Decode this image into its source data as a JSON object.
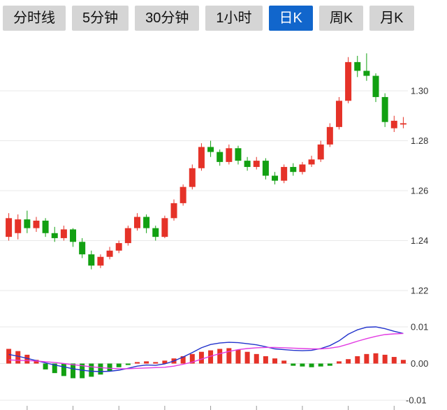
{
  "tabs": [
    {
      "id": "timeline",
      "label": "分时线",
      "active": false
    },
    {
      "id": "5min",
      "label": "5分钟",
      "active": false
    },
    {
      "id": "30min",
      "label": "30分钟",
      "active": false
    },
    {
      "id": "1hour",
      "label": "1小时",
      "active": false
    },
    {
      "id": "daily",
      "label": "日K",
      "active": true
    },
    {
      "id": "weekly",
      "label": "周K",
      "active": false
    },
    {
      "id": "monthly",
      "label": "月K",
      "active": false
    }
  ],
  "colors": {
    "up": "#E53228",
    "down": "#12A012",
    "dif_line": "#2233CC",
    "dea_line": "#E23BE2",
    "grid": "#E8E8E8",
    "axis_text": "#333333",
    "tick_mark": "#999999",
    "tab_bg": "#D5D5D5",
    "tab_text": "#111111",
    "tab_active_bg": "#1166CC",
    "tab_active_text": "#FFFFFF"
  },
  "chart_data": {
    "type": "candlestick",
    "grid": "horizontal",
    "legend_position": "none",
    "main_panel": {
      "type": "candlestick",
      "y_ticks": [
        1.3,
        1.28,
        1.26,
        1.24,
        1.22
      ],
      "y_tick_labels": [
        "1.30",
        "1.28",
        "1.26",
        "1.24",
        "1.22"
      ],
      "ylim": [
        1.214,
        1.32
      ],
      "candles_ohlc": [
        [
          1.2415,
          1.251,
          1.24,
          1.249
        ],
        [
          1.243,
          1.2505,
          1.2405,
          1.2485
        ],
        [
          1.2485,
          1.252,
          1.243,
          1.245
        ],
        [
          1.245,
          1.2495,
          1.2435,
          1.248
        ],
        [
          1.248,
          1.249,
          1.2415,
          1.243
        ],
        [
          1.243,
          1.2455,
          1.2395,
          1.241
        ],
        [
          1.241,
          1.246,
          1.24,
          1.2445
        ],
        [
          1.2445,
          1.245,
          1.2375,
          1.2395
        ],
        [
          1.2395,
          1.241,
          1.233,
          1.2345
        ],
        [
          1.2345,
          1.236,
          1.2285,
          1.23
        ],
        [
          1.23,
          1.2345,
          1.229,
          1.2335
        ],
        [
          1.2335,
          1.2375,
          1.2325,
          1.236
        ],
        [
          1.236,
          1.24,
          1.235,
          1.239
        ],
        [
          1.239,
          1.246,
          1.238,
          1.245
        ],
        [
          1.245,
          1.251,
          1.244,
          1.2495
        ],
        [
          1.2495,
          1.2505,
          1.243,
          1.245
        ],
        [
          1.245,
          1.246,
          1.24,
          1.2415
        ],
        [
          1.2415,
          1.25,
          1.241,
          1.249
        ],
        [
          1.249,
          1.2565,
          1.248,
          1.255
        ],
        [
          1.255,
          1.2625,
          1.254,
          1.2615
        ],
        [
          1.2615,
          1.2705,
          1.2605,
          1.269
        ],
        [
          1.269,
          1.279,
          1.268,
          1.2775
        ],
        [
          1.2775,
          1.28,
          1.2735,
          1.2755
        ],
        [
          1.2755,
          1.2765,
          1.27,
          1.2715
        ],
        [
          1.2715,
          1.2785,
          1.2705,
          1.277
        ],
        [
          1.277,
          1.278,
          1.2705,
          1.272
        ],
        [
          1.272,
          1.2735,
          1.268,
          1.2695
        ],
        [
          1.2695,
          1.2735,
          1.2685,
          1.272
        ],
        [
          1.272,
          1.273,
          1.2645,
          1.266
        ],
        [
          1.266,
          1.2675,
          1.2625,
          1.264
        ],
        [
          1.264,
          1.2705,
          1.263,
          1.2695
        ],
        [
          1.2695,
          1.271,
          1.266,
          1.2675
        ],
        [
          1.2675,
          1.2715,
          1.2665,
          1.2705
        ],
        [
          1.2705,
          1.274,
          1.2695,
          1.2725
        ],
        [
          1.2725,
          1.28,
          1.2715,
          1.2785
        ],
        [
          1.2785,
          1.287,
          1.2775,
          1.2855
        ],
        [
          1.2855,
          1.2975,
          1.2845,
          1.296
        ],
        [
          1.296,
          1.3135,
          1.295,
          1.3115
        ],
        [
          1.3115,
          1.314,
          1.3055,
          1.308
        ],
        [
          1.308,
          1.315,
          1.304,
          1.306
        ],
        [
          1.306,
          1.307,
          1.2955,
          1.2975
        ],
        [
          1.2975,
          1.299,
          1.2855,
          1.2875
        ],
        [
          1.285,
          1.29,
          1.2835,
          1.288
        ],
        [
          1.2865,
          1.2895,
          1.285,
          1.287
        ]
      ]
    },
    "macd_panel": {
      "type": "macd",
      "y_ticks": [
        0.01,
        0.0,
        -0.01
      ],
      "y_tick_labels": [
        "0.01",
        "0.00",
        "-0.01"
      ],
      "ylim": [
        -0.013,
        0.013
      ],
      "dif": [
        0.0025,
        0.002,
        0.0014,
        0.0008,
        0.0002,
        -0.0004,
        -0.0009,
        -0.0014,
        -0.0018,
        -0.0021,
        -0.0022,
        -0.0021,
        -0.0018,
        -0.0013,
        -0.0007,
        -0.0004,
        -0.0005,
        -0.0001,
        0.0007,
        0.0018,
        0.003,
        0.0043,
        0.0052,
        0.0056,
        0.0058,
        0.0057,
        0.0054,
        0.0051,
        0.0046,
        0.004,
        0.0038,
        0.0036,
        0.0035,
        0.0036,
        0.0041,
        0.0049,
        0.0062,
        0.008,
        0.0092,
        0.0099,
        0.01,
        0.0095,
        0.0088,
        0.0082
      ],
      "dea": [
        0.001,
        0.0009,
        0.0008,
        0.0007,
        0.0005,
        0.0003,
        0.0,
        -0.0003,
        -0.0006,
        -0.0009,
        -0.0011,
        -0.0013,
        -0.0014,
        -0.0014,
        -0.0013,
        -0.0012,
        -0.0011,
        -0.001,
        -0.0007,
        -0.0002,
        0.0004,
        0.0012,
        0.002,
        0.0027,
        0.0033,
        0.0038,
        0.0041,
        0.0043,
        0.0044,
        0.0044,
        0.0043,
        0.0042,
        0.0041,
        0.004,
        0.004,
        0.0042,
        0.0046,
        0.0053,
        0.0061,
        0.0068,
        0.0074,
        0.0079,
        0.0081,
        0.0082
      ],
      "histogram": [
        0.004,
        0.0034,
        0.0024,
        0.001,
        -0.0016,
        -0.0026,
        -0.0034,
        -0.004,
        -0.004,
        -0.0036,
        -0.003,
        -0.002,
        -0.001,
        -0.0004,
        0.0004,
        0.0006,
        0.0004,
        0.0008,
        0.0014,
        0.002,
        0.0026,
        0.0032,
        0.0036,
        0.004,
        0.0042,
        0.0038,
        0.0032,
        0.0026,
        0.002,
        0.0014,
        0.0008,
        -0.0006,
        -0.0008,
        -0.001,
        -0.0008,
        -0.0006,
        0.0006,
        0.0012,
        0.002,
        0.0026,
        0.0028,
        0.0024,
        0.0018,
        0.001
      ]
    },
    "x_axis": {
      "tick_interval_candles": 5,
      "x_tick_labels": []
    }
  }
}
